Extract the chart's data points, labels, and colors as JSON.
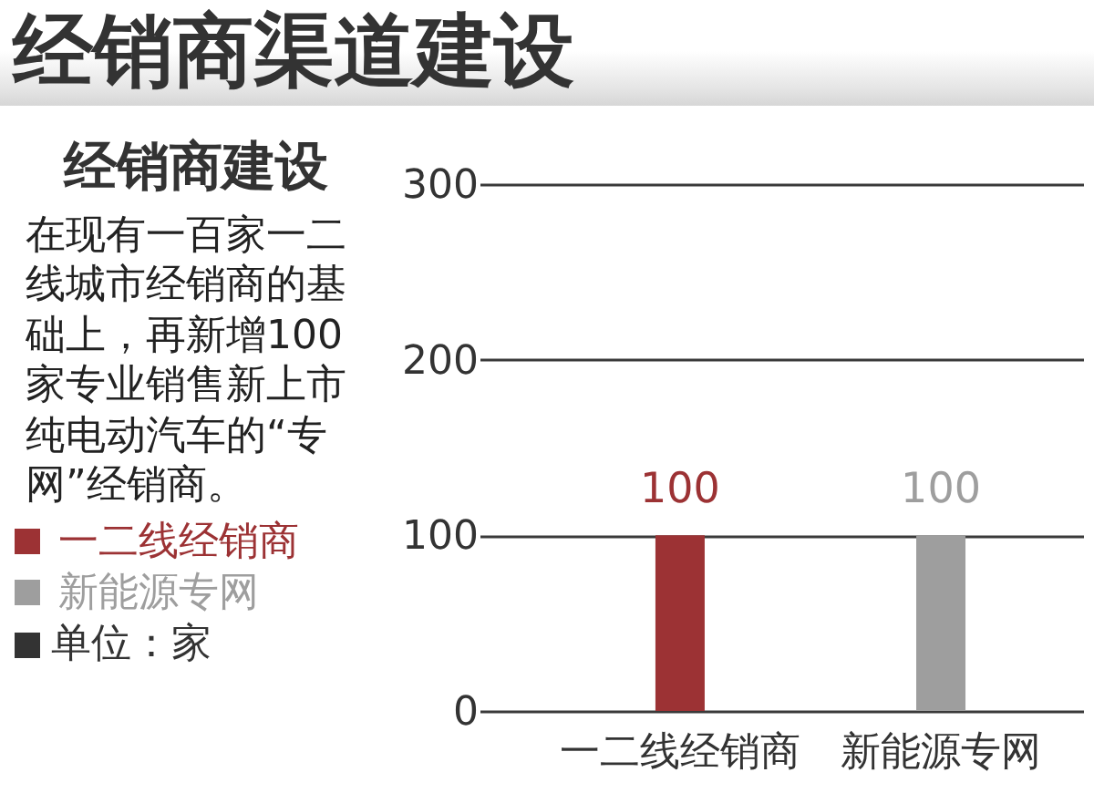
{
  "chart_data": {
    "type": "bar",
    "title": "经销商渠道建设",
    "subtitle": "经销商建设",
    "annotations": [
      "在现有一百家一二线城市经销商的基础上，再新增100家专业销售新上市纯电动汽车的“专网”经销商。"
    ],
    "ylabel": "单位：家",
    "categories": [
      "一二线经销商",
      "新能源专网"
    ],
    "series": [
      {
        "name": "一二线经销商",
        "color": "#9c3234",
        "values": [
          100,
          null
        ]
      },
      {
        "name": "新能源专网",
        "color": "#9e9e9e",
        "values": [
          null,
          100
        ]
      }
    ],
    "ylim": [
      0,
      300
    ],
    "yticks": [
      0,
      100,
      200,
      300
    ],
    "grid": "y",
    "legend": "left",
    "data_labels": true
  }
}
